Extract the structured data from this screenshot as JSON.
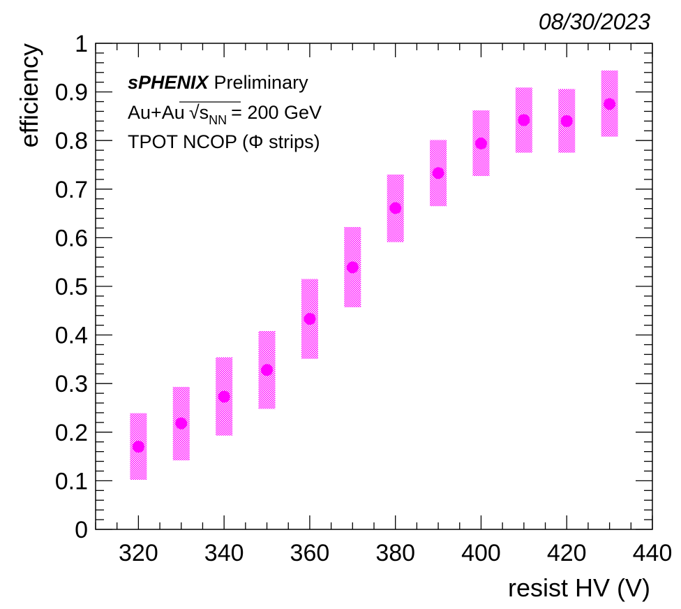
{
  "date": "08/30/2023",
  "annotations": {
    "experiment": "sPHENIX",
    "status": "Preliminary",
    "collision_prefix": "Au+Au",
    "sqrt_symbol": "√",
    "s_symbol": "s",
    "nn_subscript": "NN",
    "energy": "= 200 GeV",
    "detector": "TPOT NCOP (Φ strips)"
  },
  "colors": {
    "marker": "#ff00ff",
    "band": "#ff00ff",
    "axis": "#000000"
  },
  "chart_data": {
    "type": "scatter",
    "xlabel": "resist HV (V)",
    "ylabel": "efficiency",
    "xlim": [
      310,
      440
    ],
    "ylim": [
      0,
      1
    ],
    "x_ticks": [
      320,
      340,
      360,
      380,
      400,
      420,
      440
    ],
    "y_ticks": [
      0,
      0.1,
      0.2,
      0.3,
      0.4,
      0.5,
      0.6,
      0.7,
      0.8,
      0.9,
      1
    ],
    "y_tick_labels": [
      "0",
      "0.1",
      "0.2",
      "0.3",
      "0.4",
      "0.5",
      "0.6",
      "0.7",
      "0.8",
      "0.9",
      "1"
    ],
    "x_tick_labels": [
      "320",
      "340",
      "360",
      "380",
      "400",
      "420",
      "440"
    ],
    "grid": false,
    "x": [
      320,
      330,
      340,
      350,
      360,
      370,
      380,
      390,
      400,
      410,
      420,
      430
    ],
    "y": [
      0.17,
      0.218,
      0.273,
      0.328,
      0.433,
      0.539,
      0.661,
      0.733,
      0.794,
      0.842,
      0.84,
      0.875
    ],
    "y_low": [
      0.102,
      0.142,
      0.193,
      0.248,
      0.351,
      0.457,
      0.591,
      0.665,
      0.727,
      0.775,
      0.775,
      0.808
    ],
    "y_high": [
      0.239,
      0.293,
      0.354,
      0.408,
      0.515,
      0.622,
      0.73,
      0.801,
      0.862,
      0.909,
      0.906,
      0.944
    ]
  }
}
